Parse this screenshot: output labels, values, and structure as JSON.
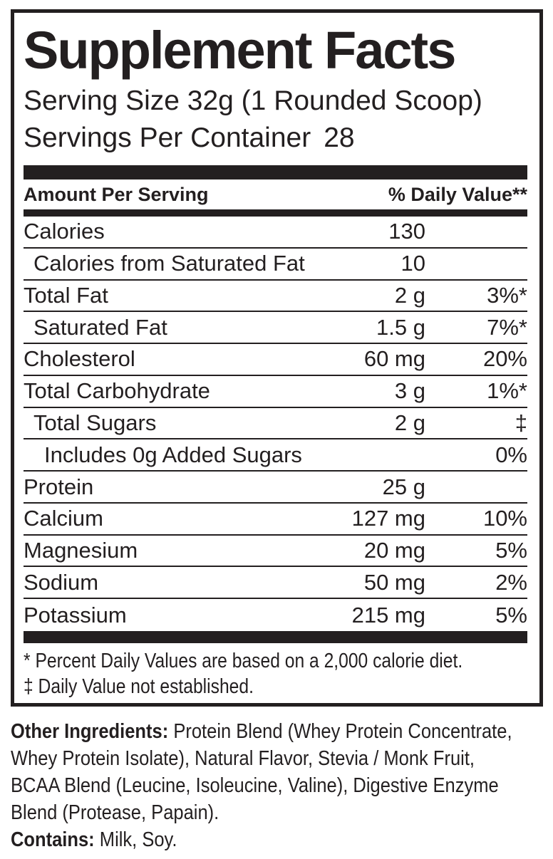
{
  "label": {
    "title": "Supplement Facts",
    "serving_size": "Serving Size 32g (1 Rounded Scoop)",
    "servings_per_container_label": "Servings Per Container",
    "servings_per_container_value": "28",
    "columns": {
      "amount_header": "Amount Per Serving",
      "daily_value_header": "% Daily Value**"
    },
    "rows": [
      {
        "name": "Calories",
        "amount": "130",
        "dv": "",
        "indent": 0
      },
      {
        "name": "Calories from Saturated Fat",
        "amount": "10",
        "dv": "",
        "indent": 1
      },
      {
        "name": "Total Fat",
        "amount": "2 g",
        "dv": "3%*",
        "indent": 0
      },
      {
        "name": "Saturated Fat",
        "amount": "1.5 g",
        "dv": "7%*",
        "indent": 1
      },
      {
        "name": "Cholesterol",
        "amount": "60 mg",
        "dv": "20%",
        "indent": 0
      },
      {
        "name": "Total Carbohydrate",
        "amount": "3 g",
        "dv": "1%*",
        "indent": 0
      },
      {
        "name": "Total Sugars",
        "amount": "2 g",
        "dv": "‡",
        "indent": 1
      },
      {
        "name": "Includes 0g Added Sugars",
        "amount": "",
        "dv": "0%",
        "indent": 2
      },
      {
        "name": "Protein",
        "amount": "25 g",
        "dv": "",
        "indent": 0
      },
      {
        "name": "Calcium",
        "amount": "127 mg",
        "dv": "10%",
        "indent": 0
      },
      {
        "name": "Magnesium",
        "amount": "20 mg",
        "dv": "5%",
        "indent": 0
      },
      {
        "name": "Sodium",
        "amount": "50 mg",
        "dv": "2%",
        "indent": 0
      },
      {
        "name": "Potassium",
        "amount": "215 mg",
        "dv": "5%",
        "indent": 0
      }
    ],
    "footnotes": [
      "* Percent Daily Values are based on a 2,000 calorie diet.",
      "‡ Daily Value not established."
    ]
  },
  "ingredients": {
    "lines": [
      {
        "bold": "Other Ingredients:",
        "text": "Protein Blend (Whey Protein Concentrate,"
      },
      {
        "bold": "",
        "text": "Whey Protein Isolate), Natural Flavor, Stevia / Monk Fruit,"
      },
      {
        "bold": "",
        "text": "BCAA Blend (Leucine, Isoleucine, Valine), Digestive Enzyme"
      },
      {
        "bold": "",
        "text": "Blend (Protease, Papain)."
      },
      {
        "bold": "Contains:",
        "text": "Milk, Soy."
      }
    ]
  },
  "colors": {
    "ink": "#231f20",
    "background": "#ffffff"
  }
}
